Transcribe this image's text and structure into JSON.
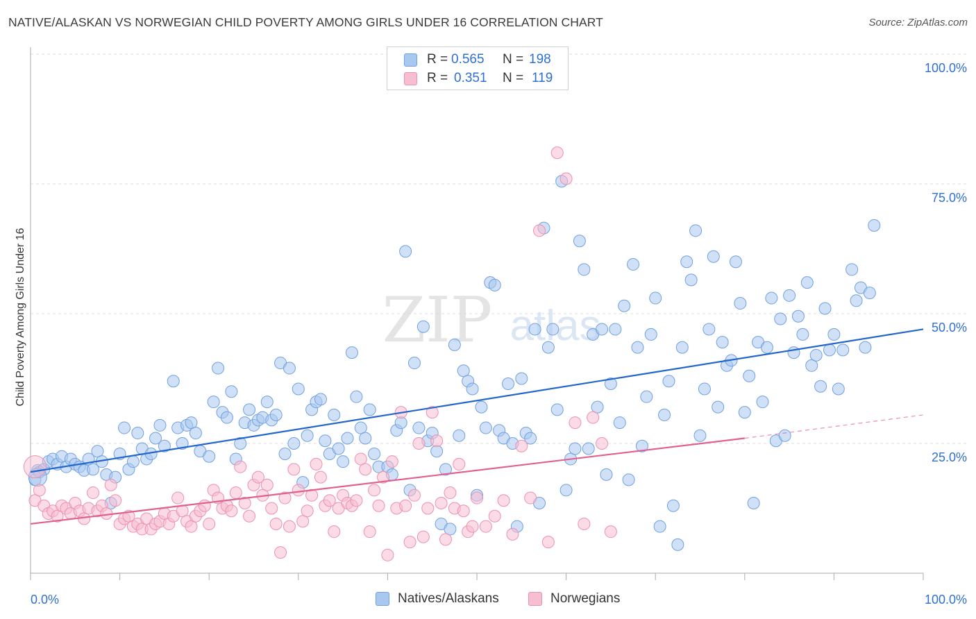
{
  "header": {
    "title": "NATIVE/ALASKAN VS NORWEGIAN CHILD POVERTY AMONG GIRLS UNDER 16 CORRELATION CHART",
    "source": "Source: ZipAtlas.com"
  },
  "watermark": {
    "zip": "ZIP",
    "atlas": "atlas"
  },
  "legend_top": {
    "rows": [
      {
        "r_label": "R =",
        "r_value": "0.565",
        "n_label": "N =",
        "n_value": "198"
      },
      {
        "r_label": "R =",
        "r_value": "0.351",
        "n_label": "N =",
        "n_value": "119"
      }
    ]
  },
  "legend_bottom": {
    "series1": "Natives/Alaskans",
    "series2": "Norwegians"
  },
  "axis": {
    "y_label": "Child Poverty Among Girls Under 16",
    "x_min_label": "0.0%",
    "x_max_label": "100.0%"
  },
  "colors": {
    "native_fill": "#a9c8f0",
    "native_stroke": "#6fa0e0",
    "native_line": "#2266cc",
    "norwegian_fill": "#f7bdd0",
    "norwegian_stroke": "#ee8fb0",
    "norwegian_line": "#e0608f",
    "value_text": "#2f6fd1",
    "grid": "#dddddd"
  },
  "chart_data": {
    "type": "scatter",
    "title": "NATIVE/ALASKAN VS NORWEGIAN CHILD POVERTY AMONG GIRLS UNDER 16 CORRELATION CHART",
    "xlabel": "",
    "ylabel": "Child Poverty Among Girls Under 16",
    "xlim": [
      0,
      100
    ],
    "ylim": [
      0,
      100
    ],
    "y_ticks": [
      "25.0%",
      "50.0%",
      "75.0%",
      "100.0%"
    ],
    "y_tick_values": [
      25,
      50,
      75,
      100
    ],
    "x_tick_labels": [
      "0.0%",
      "100.0%"
    ],
    "grid": "horizontal dashed",
    "legend": "top-center",
    "series": [
      {
        "name": "Natives/Alaskans",
        "R": 0.565,
        "N": 198,
        "trend": {
          "x": [
            0,
            100
          ],
          "y": [
            19.5,
            47
          ]
        },
        "points": [
          [
            0.5,
            18
          ],
          [
            0.8,
            19.8
          ],
          [
            1,
            19.5
          ],
          [
            1.5,
            20
          ],
          [
            2,
            21.5
          ],
          [
            2.5,
            22
          ],
          [
            3,
            21
          ],
          [
            3.5,
            22.5
          ],
          [
            4,
            20.5
          ],
          [
            4.5,
            22
          ],
          [
            5,
            21
          ],
          [
            5.5,
            20.5
          ],
          [
            6,
            19.8
          ],
          [
            6.5,
            22
          ],
          [
            7,
            20
          ],
          [
            7.5,
            23.5
          ],
          [
            8,
            21.5
          ],
          [
            8.5,
            19
          ],
          [
            9,
            13.5
          ],
          [
            9.5,
            18.5
          ],
          [
            10,
            23
          ],
          [
            10.5,
            28
          ],
          [
            11,
            20
          ],
          [
            11.5,
            21.5
          ],
          [
            12,
            27
          ],
          [
            12.5,
            24
          ],
          [
            13,
            22
          ],
          [
            13.5,
            23
          ],
          [
            14,
            26
          ],
          [
            14.5,
            28.5
          ],
          [
            15,
            24.5
          ],
          [
            16,
            37
          ],
          [
            16.5,
            28
          ],
          [
            17,
            25
          ],
          [
            17.5,
            28.5
          ],
          [
            18,
            29
          ],
          [
            18.5,
            27
          ],
          [
            19,
            23.5
          ],
          [
            20,
            22.5
          ],
          [
            20.5,
            33
          ],
          [
            21,
            39.5
          ],
          [
            21.5,
            31
          ],
          [
            22,
            30
          ],
          [
            22.5,
            35
          ],
          [
            23,
            22
          ],
          [
            23.5,
            25
          ],
          [
            24,
            29
          ],
          [
            24.5,
            31.5
          ],
          [
            25,
            28.5
          ],
          [
            25.5,
            29.5
          ],
          [
            26,
            30
          ],
          [
            26.5,
            33
          ],
          [
            27,
            29.5
          ],
          [
            27.5,
            30.5
          ],
          [
            28,
            40.5
          ],
          [
            28.5,
            23
          ],
          [
            29,
            39.5
          ],
          [
            29.5,
            25
          ],
          [
            30,
            35.5
          ],
          [
            30.5,
            17.5
          ],
          [
            31,
            26.5
          ],
          [
            31.5,
            31.5
          ],
          [
            32,
            33
          ],
          [
            32.5,
            33.5
          ],
          [
            33,
            25.5
          ],
          [
            33.5,
            23
          ],
          [
            34,
            30.5
          ],
          [
            34.5,
            24
          ],
          [
            35,
            21.5
          ],
          [
            35.5,
            26
          ],
          [
            36,
            42.5
          ],
          [
            36.5,
            34
          ],
          [
            37,
            28
          ],
          [
            37.5,
            26
          ],
          [
            38,
            31.5
          ],
          [
            38.5,
            23
          ],
          [
            39,
            20.5
          ],
          [
            40,
            20.5
          ],
          [
            40.5,
            19
          ],
          [
            41,
            27.5
          ],
          [
            41.5,
            29
          ],
          [
            42,
            62
          ],
          [
            42.5,
            16
          ],
          [
            43,
            40.5
          ],
          [
            43.5,
            28
          ],
          [
            44,
            47.5
          ],
          [
            44.5,
            25.5
          ],
          [
            45,
            27
          ],
          [
            45.5,
            23.5
          ],
          [
            46,
            9.5
          ],
          [
            46.5,
            20
          ],
          [
            47,
            8.5
          ],
          [
            47.5,
            44
          ],
          [
            48,
            26.5
          ],
          [
            48.5,
            39
          ],
          [
            49,
            37
          ],
          [
            49.5,
            35.5
          ],
          [
            50,
            15
          ],
          [
            50.5,
            32
          ],
          [
            51,
            28
          ],
          [
            51.5,
            56
          ],
          [
            52,
            55.5
          ],
          [
            52.5,
            27.5
          ],
          [
            53,
            26
          ],
          [
            53.5,
            36.5
          ],
          [
            54,
            25
          ],
          [
            54.5,
            9
          ],
          [
            55,
            37.5
          ],
          [
            55.5,
            27
          ],
          [
            56,
            26
          ],
          [
            56.5,
            47
          ],
          [
            57,
            13.5
          ],
          [
            57.5,
            66.5
          ],
          [
            58,
            43.5
          ],
          [
            58.5,
            47
          ],
          [
            59,
            31.5
          ],
          [
            59.5,
            75.5
          ],
          [
            60,
            16
          ],
          [
            60.5,
            22
          ],
          [
            61,
            24
          ],
          [
            61.5,
            64
          ],
          [
            62,
            58.5
          ],
          [
            62.5,
            24
          ],
          [
            63,
            46
          ],
          [
            63.5,
            32
          ],
          [
            64,
            47
          ],
          [
            64.5,
            19
          ],
          [
            65,
            36.5
          ],
          [
            65.5,
            47
          ],
          [
            66,
            29
          ],
          [
            66.5,
            51.5
          ],
          [
            67,
            18
          ],
          [
            67.5,
            59.5
          ],
          [
            68,
            43.5
          ],
          [
            68.5,
            24.5
          ],
          [
            69,
            34
          ],
          [
            69.5,
            46
          ],
          [
            70,
            53
          ],
          [
            70.5,
            9
          ],
          [
            71,
            30.5
          ],
          [
            71.5,
            37
          ],
          [
            72,
            13
          ],
          [
            72.5,
            5.5
          ],
          [
            73,
            43.5
          ],
          [
            73.5,
            60
          ],
          [
            74,
            56.5
          ],
          [
            74.5,
            66
          ],
          [
            75,
            26.5
          ],
          [
            75.5,
            35.5
          ],
          [
            76,
            47
          ],
          [
            76.5,
            61
          ],
          [
            77,
            32
          ],
          [
            77.5,
            44.5
          ],
          [
            78,
            40
          ],
          [
            78.5,
            41
          ],
          [
            79,
            60
          ],
          [
            79.5,
            52
          ],
          [
            80,
            31
          ],
          [
            80.5,
            38
          ],
          [
            81,
            13.5
          ],
          [
            81.5,
            44.5
          ],
          [
            82,
            33
          ],
          [
            82.5,
            43.5
          ],
          [
            83,
            53
          ],
          [
            83.5,
            25.5
          ],
          [
            84,
            49
          ],
          [
            84.5,
            26.5
          ],
          [
            85,
            53.5
          ],
          [
            85.5,
            42.5
          ],
          [
            86,
            49.5
          ],
          [
            86.5,
            46
          ],
          [
            87,
            56
          ],
          [
            87.5,
            40
          ],
          [
            88,
            42
          ],
          [
            88.5,
            36
          ],
          [
            89,
            51
          ],
          [
            89.5,
            43
          ],
          [
            90,
            46
          ],
          [
            90.5,
            35.5
          ],
          [
            91,
            43
          ],
          [
            92,
            58.5
          ],
          [
            92.5,
            52.5
          ],
          [
            93,
            55
          ],
          [
            93.5,
            43.5
          ],
          [
            94,
            54
          ],
          [
            94.5,
            67
          ]
        ]
      },
      {
        "name": "Norwegians",
        "R": 0.351,
        "N": 119,
        "trend": {
          "x": [
            0,
            80,
            100
          ],
          "y": [
            9.5,
            26,
            30.5
          ]
        },
        "points": [
          [
            0.5,
            14
          ],
          [
            1,
            16
          ],
          [
            1.5,
            13
          ],
          [
            2,
            11.5
          ],
          [
            2.5,
            12
          ],
          [
            3,
            11
          ],
          [
            3.5,
            13
          ],
          [
            4,
            12.5
          ],
          [
            4.5,
            11.5
          ],
          [
            5,
            13.5
          ],
          [
            5.5,
            12
          ],
          [
            6,
            10.5
          ],
          [
            6.5,
            12.5
          ],
          [
            7,
            15.5
          ],
          [
            7.5,
            12
          ],
          [
            8,
            13
          ],
          [
            8.5,
            11.5
          ],
          [
            9,
            17
          ],
          [
            9.5,
            14
          ],
          [
            10,
            9.5
          ],
          [
            10.5,
            10.5
          ],
          [
            11,
            11
          ],
          [
            11.5,
            9
          ],
          [
            12,
            9.5
          ],
          [
            12.5,
            8.5
          ],
          [
            13,
            10.5
          ],
          [
            13.5,
            8.5
          ],
          [
            14,
            9.5
          ],
          [
            14.5,
            10
          ],
          [
            15,
            11.5
          ],
          [
            15.5,
            9.5
          ],
          [
            16,
            11
          ],
          [
            16.5,
            14.5
          ],
          [
            17,
            12
          ],
          [
            17.5,
            10
          ],
          [
            18,
            9
          ],
          [
            18.5,
            11
          ],
          [
            19,
            12
          ],
          [
            19.5,
            13
          ],
          [
            20,
            9.5
          ],
          [
            20.5,
            16
          ],
          [
            21,
            14.5
          ],
          [
            21.5,
            12.5
          ],
          [
            22,
            13
          ],
          [
            22.5,
            12
          ],
          [
            23,
            15.5
          ],
          [
            23.5,
            20.5
          ],
          [
            24,
            13.5
          ],
          [
            24.5,
            11
          ],
          [
            25,
            17
          ],
          [
            25.5,
            18.5
          ],
          [
            26,
            15
          ],
          [
            26.5,
            17
          ],
          [
            27,
            12.5
          ],
          [
            27.5,
            9.5
          ],
          [
            28,
            4
          ],
          [
            28.5,
            14.5
          ],
          [
            29,
            9
          ],
          [
            29.5,
            20
          ],
          [
            30,
            16
          ],
          [
            30.5,
            10
          ],
          [
            31,
            12
          ],
          [
            31.5,
            15
          ],
          [
            32,
            21
          ],
          [
            32.5,
            18.5
          ],
          [
            33,
            13
          ],
          [
            33.5,
            14
          ],
          [
            34,
            8
          ],
          [
            34.5,
            12.5
          ],
          [
            35,
            15
          ],
          [
            35.5,
            13.5
          ],
          [
            36,
            13
          ],
          [
            36.5,
            14
          ],
          [
            37,
            22
          ],
          [
            37.5,
            20
          ],
          [
            38,
            8
          ],
          [
            38.5,
            16
          ],
          [
            39,
            13
          ],
          [
            39.5,
            18.5
          ],
          [
            40,
            3.5
          ],
          [
            40.5,
            21.5
          ],
          [
            41,
            12.5
          ],
          [
            41.5,
            31
          ],
          [
            42,
            13
          ],
          [
            42.5,
            6
          ],
          [
            43,
            15
          ],
          [
            43.5,
            25
          ],
          [
            44,
            7
          ],
          [
            44.5,
            12.5
          ],
          [
            45,
            31
          ],
          [
            45.5,
            25.5
          ],
          [
            46,
            13.5
          ],
          [
            46.5,
            6.5
          ],
          [
            47,
            15.5
          ],
          [
            47.5,
            12.5
          ],
          [
            48,
            21
          ],
          [
            48.5,
            12
          ],
          [
            49,
            8
          ],
          [
            49.5,
            9
          ],
          [
            50,
            14.5
          ],
          [
            51,
            9
          ],
          [
            52,
            11
          ],
          [
            53,
            14
          ],
          [
            54,
            7.5
          ],
          [
            55,
            24.5
          ],
          [
            56,
            14.5
          ],
          [
            57,
            66
          ],
          [
            58,
            6
          ],
          [
            59,
            81
          ],
          [
            60,
            76
          ],
          [
            61,
            29
          ],
          [
            62,
            9.5
          ],
          [
            63,
            30
          ],
          [
            64,
            25
          ],
          [
            65,
            8
          ]
        ]
      }
    ]
  }
}
